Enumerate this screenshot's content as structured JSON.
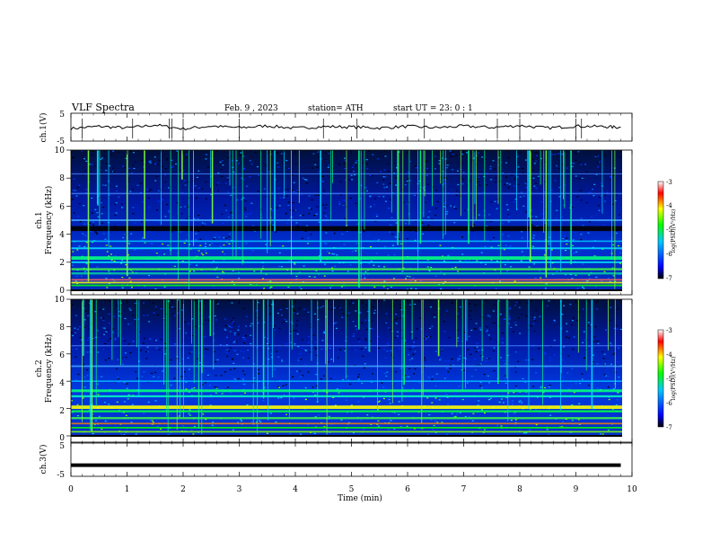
{
  "header": {
    "title": "VLF  Spectra",
    "date": "Feb. 9  , 2023",
    "station": "station= ATH",
    "start": "start  UT  =    23: 0   : 1"
  },
  "chart_data": [
    {
      "type": "line",
      "panel": "ch1-waveform",
      "ylabel": "ch.1(V)",
      "ylim": [
        -5,
        5
      ],
      "yticks": [
        "5",
        "-5"
      ],
      "xlim": [
        0,
        10
      ],
      "x": [
        0,
        0.5,
        1,
        1.5,
        2,
        2.5,
        3,
        3.5,
        4,
        4.5,
        5,
        5.5,
        6,
        6.5,
        7,
        7.5,
        8,
        8.5,
        9,
        9.5,
        9.8
      ],
      "values": [
        -0.5,
        0.3,
        -0.3,
        0.8,
        -0.6,
        0.4,
        -0.2,
        0.5,
        -0.4,
        0.2,
        0.1,
        -0.3,
        0.3,
        -0.2,
        0.4,
        -0.1,
        0.6,
        -0.3,
        0.4,
        0.2,
        -0.1
      ],
      "color": "#000000"
    },
    {
      "type": "heatmap",
      "panel": "ch1-spectrogram",
      "ylabel": "ch.1\nFrequency  (kHz)",
      "ylim": [
        0,
        10
      ],
      "yticks": [
        "0",
        "2",
        "4",
        "6",
        "8",
        "10"
      ],
      "xlim": [
        0,
        10
      ],
      "colorbar": {
        "label": "log(PSD)(V²/Hz)",
        "range": [
          -7,
          -3
        ],
        "ticks": [
          "-3",
          "-4",
          "-5",
          "-6",
          "-7"
        ],
        "colors": [
          "#000000",
          "#0000ff",
          "#00c8ff",
          "#00ff00",
          "#ffff00",
          "#ff0000",
          "#ffffff"
        ]
      }
    },
    {
      "type": "heatmap",
      "panel": "ch2-spectrogram",
      "ylabel": "ch.2\nFrequency  (kHz)",
      "ylim": [
        0,
        10
      ],
      "yticks": [
        "0",
        "2",
        "4",
        "6",
        "8",
        "10"
      ],
      "xlim": [
        0,
        10
      ],
      "colorbar": {
        "label": "log(PSD)(V²/Hz)",
        "range": [
          -7,
          -3
        ],
        "ticks": [
          "-3",
          "-4",
          "-5",
          "-6",
          "-7"
        ],
        "colors": [
          "#000000",
          "#0000ff",
          "#00c8ff",
          "#00ff00",
          "#ffff00",
          "#ff0000",
          "#ffffff"
        ]
      }
    },
    {
      "type": "line",
      "panel": "ch3-waveform",
      "ylabel": "ch.3(V)",
      "ylim": [
        -5,
        5
      ],
      "yticks": [
        "5",
        "-5"
      ],
      "xlim": [
        0,
        10
      ],
      "x": [
        0,
        9.8
      ],
      "values": [
        -2.2,
        -2.2
      ],
      "color": "#000000",
      "xlabel": "Time  (min)",
      "xticks": [
        "0",
        "1",
        "2",
        "3",
        "4",
        "5",
        "6",
        "7",
        "8",
        "9",
        "10"
      ]
    }
  ]
}
